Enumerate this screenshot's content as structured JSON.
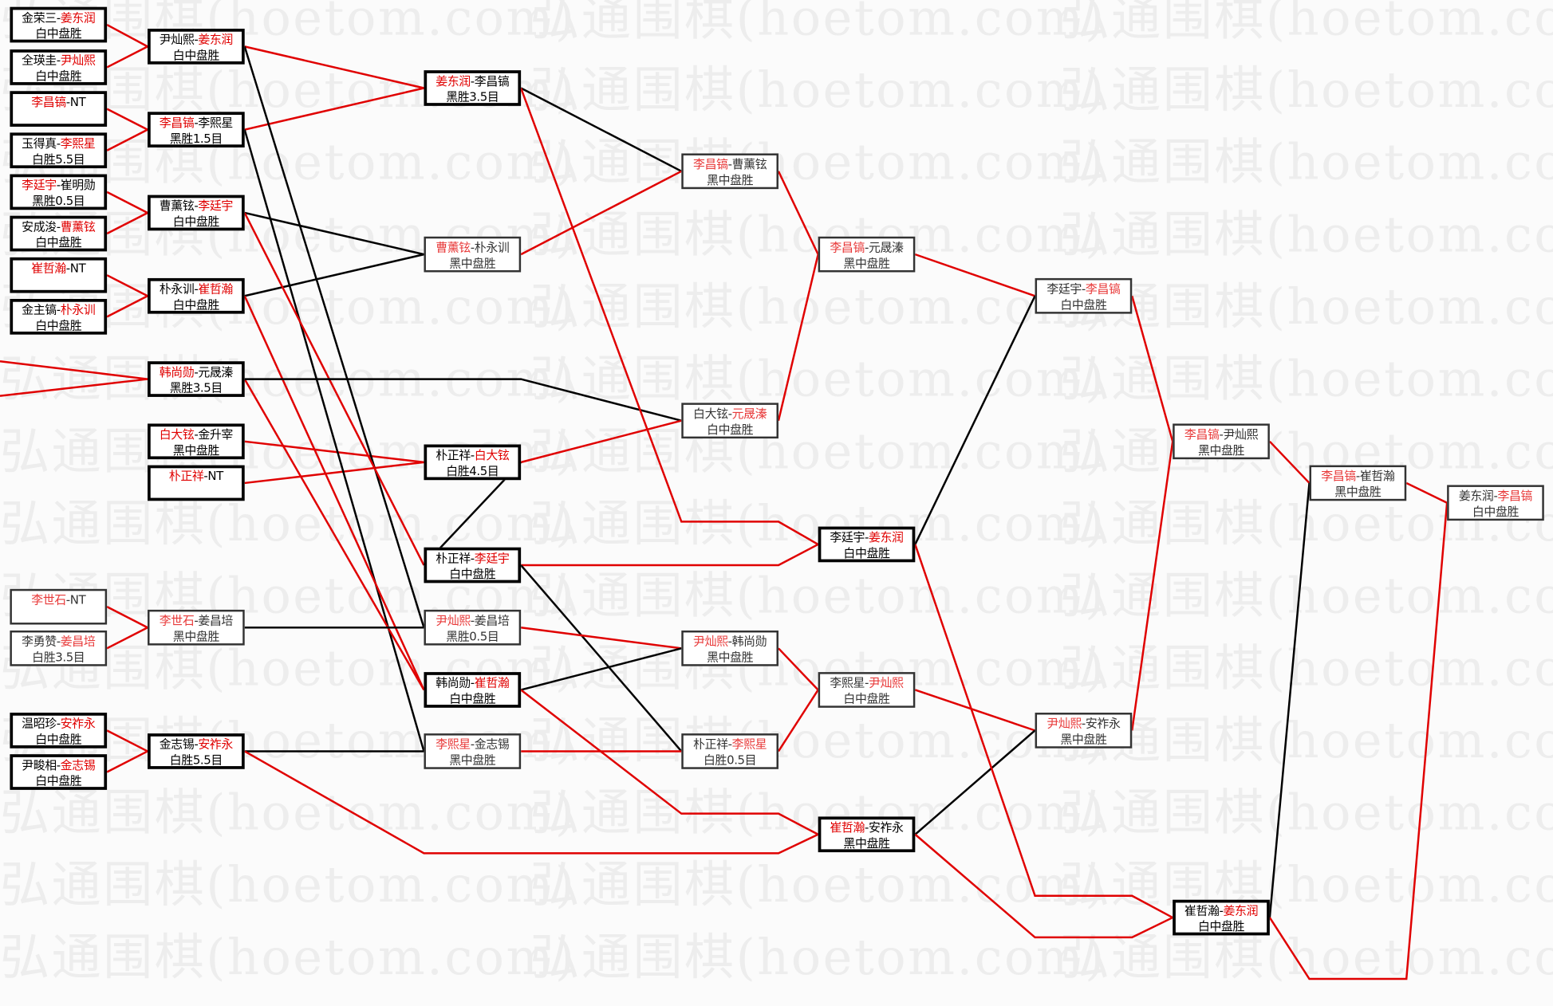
{
  "watermark": "弘通围棋(hoetom.com)",
  "separator": "-",
  "colors": {
    "winner": "#e00000",
    "win_line": "#e00000",
    "loss_line": "#000000"
  },
  "matches": [
    {
      "p1": "金荣三",
      "p2": "姜东润",
      "winner": 2,
      "result": "白中盘胜",
      "style": "bold"
    },
    {
      "p1": "全瑛圭",
      "p2": "尹灿熙",
      "winner": 2,
      "result": "白中盘胜",
      "style": "bold"
    },
    {
      "p1": "李昌镐",
      "p2": "NT",
      "winner": 1,
      "result": "",
      "style": "bold"
    },
    {
      "p1": "玉得真",
      "p2": "李熙星",
      "winner": 2,
      "result": "白胜5.5目",
      "style": "bold"
    },
    {
      "p1": "李廷宇",
      "p2": "崔明勋",
      "winner": 1,
      "result": "黑胜0.5目",
      "style": "bold"
    },
    {
      "p1": "安成浚",
      "p2": "曹薰铉",
      "winner": 2,
      "result": "白中盘胜",
      "style": "bold"
    },
    {
      "p1": "崔哲瀚",
      "p2": "NT",
      "winner": 1,
      "result": "",
      "style": "bold"
    },
    {
      "p1": "金主镐",
      "p2": "朴永训",
      "winner": 2,
      "result": "白中盘胜",
      "style": "bold"
    },
    {
      "p1": "李世石",
      "p2": "NT",
      "winner": 1,
      "result": "",
      "style": "thin"
    },
    {
      "p1": "李勇赞",
      "p2": "姜昌培",
      "winner": 2,
      "result": "白胜3.5目",
      "style": "thin"
    },
    {
      "p1": "温昭珍",
      "p2": "安祚永",
      "winner": 2,
      "result": "白中盘胜",
      "style": "bold"
    },
    {
      "p1": "尹畯相",
      "p2": "金志锡",
      "winner": 2,
      "result": "白中盘胜",
      "style": "bold"
    },
    {
      "p1": "尹灿熙",
      "p2": "姜东润",
      "winner": 2,
      "result": "白中盘胜",
      "style": "bold"
    },
    {
      "p1": "李昌镐",
      "p2": "李熙星",
      "winner": 1,
      "result": "黑胜1.5目",
      "style": "bold"
    },
    {
      "p1": "曹薰铉",
      "p2": "李廷宇",
      "winner": 2,
      "result": "白中盘胜",
      "style": "bold"
    },
    {
      "p1": "朴永训",
      "p2": "崔哲瀚",
      "winner": 2,
      "result": "白中盘胜",
      "style": "bold"
    },
    {
      "p1": "韩尚勋",
      "p2": "元晟溱",
      "winner": 1,
      "result": "黑胜3.5目",
      "style": "bold"
    },
    {
      "p1": "白大铉",
      "p2": "金升宰",
      "winner": 1,
      "result": "黑中盘胜",
      "style": "bold"
    },
    {
      "p1": "朴正祥",
      "p2": "NT",
      "winner": 1,
      "result": "",
      "style": "bold"
    },
    {
      "p1": "李世石",
      "p2": "姜昌培",
      "winner": 1,
      "result": "黑中盘胜",
      "style": "thin"
    },
    {
      "p1": "金志锡",
      "p2": "安祚永",
      "winner": 2,
      "result": "白胜5.5目",
      "style": "bold"
    },
    {
      "p1": "姜东润",
      "p2": "李昌镐",
      "winner": 1,
      "result": "黑胜3.5目",
      "style": "bold"
    },
    {
      "p1": "曹薰铉",
      "p2": "朴永训",
      "winner": 1,
      "result": "黑中盘胜",
      "style": "thin"
    },
    {
      "p1": "朴正祥",
      "p2": "白大铉",
      "winner": 2,
      "result": "白胜4.5目",
      "style": "bold"
    },
    {
      "p1": "朴正祥",
      "p2": "李廷宇",
      "winner": 2,
      "result": "白中盘胜",
      "style": "bold"
    },
    {
      "p1": "尹灿熙",
      "p2": "姜昌培",
      "winner": 1,
      "result": "黑胜0.5目",
      "style": "thin"
    },
    {
      "p1": "韩尚勋",
      "p2": "崔哲瀚",
      "winner": 2,
      "result": "白中盘胜",
      "style": "bold"
    },
    {
      "p1": "李熙星",
      "p2": "金志锡",
      "winner": 1,
      "result": "黑中盘胜",
      "style": "thin"
    },
    {
      "p1": "李昌镐",
      "p2": "曹薰铉",
      "winner": 1,
      "result": "黑中盘胜",
      "style": "thin"
    },
    {
      "p1": "白大铉",
      "p2": "元晟溱",
      "winner": 2,
      "result": "白中盘胜",
      "style": "thin"
    },
    {
      "p1": "尹灿熙",
      "p2": "韩尚勋",
      "winner": 1,
      "result": "黑中盘胜",
      "style": "thin"
    },
    {
      "p1": "朴正祥",
      "p2": "李熙星",
      "winner": 2,
      "result": "白胜0.5目",
      "style": "thin"
    },
    {
      "p1": "李昌镐",
      "p2": "元晟溱",
      "winner": 1,
      "result": "黑中盘胜",
      "style": "thin"
    },
    {
      "p1": "李廷宇",
      "p2": "姜东润",
      "winner": 2,
      "result": "白中盘胜",
      "style": "bold"
    },
    {
      "p1": "李熙星",
      "p2": "尹灿熙",
      "winner": 2,
      "result": "白中盘胜",
      "style": "thin"
    },
    {
      "p1": "崔哲瀚",
      "p2": "安祚永",
      "winner": 1,
      "result": "黑中盘胜",
      "style": "bold"
    },
    {
      "p1": "李廷宇",
      "p2": "李昌镐",
      "winner": 2,
      "result": "白中盘胜",
      "style": "thin"
    },
    {
      "p1": "尹灿熙",
      "p2": "安祚永",
      "winner": 1,
      "result": "黑中盘胜",
      "style": "thin"
    },
    {
      "p1": "李昌镐",
      "p2": "尹灿熙",
      "winner": 1,
      "result": "黑中盘胜",
      "style": "thin"
    },
    {
      "p1": "崔哲瀚",
      "p2": "姜东润",
      "winner": 2,
      "result": "白中盘胜",
      "style": "bold"
    },
    {
      "p1": "李昌镐",
      "p2": "崔哲瀚",
      "winner": 1,
      "result": "黑中盘胜",
      "style": "thin"
    },
    {
      "p1": "姜东润",
      "p2": "李昌镐",
      "winner": 2,
      "result": "白中盘胜",
      "style": "thin"
    }
  ]
}
